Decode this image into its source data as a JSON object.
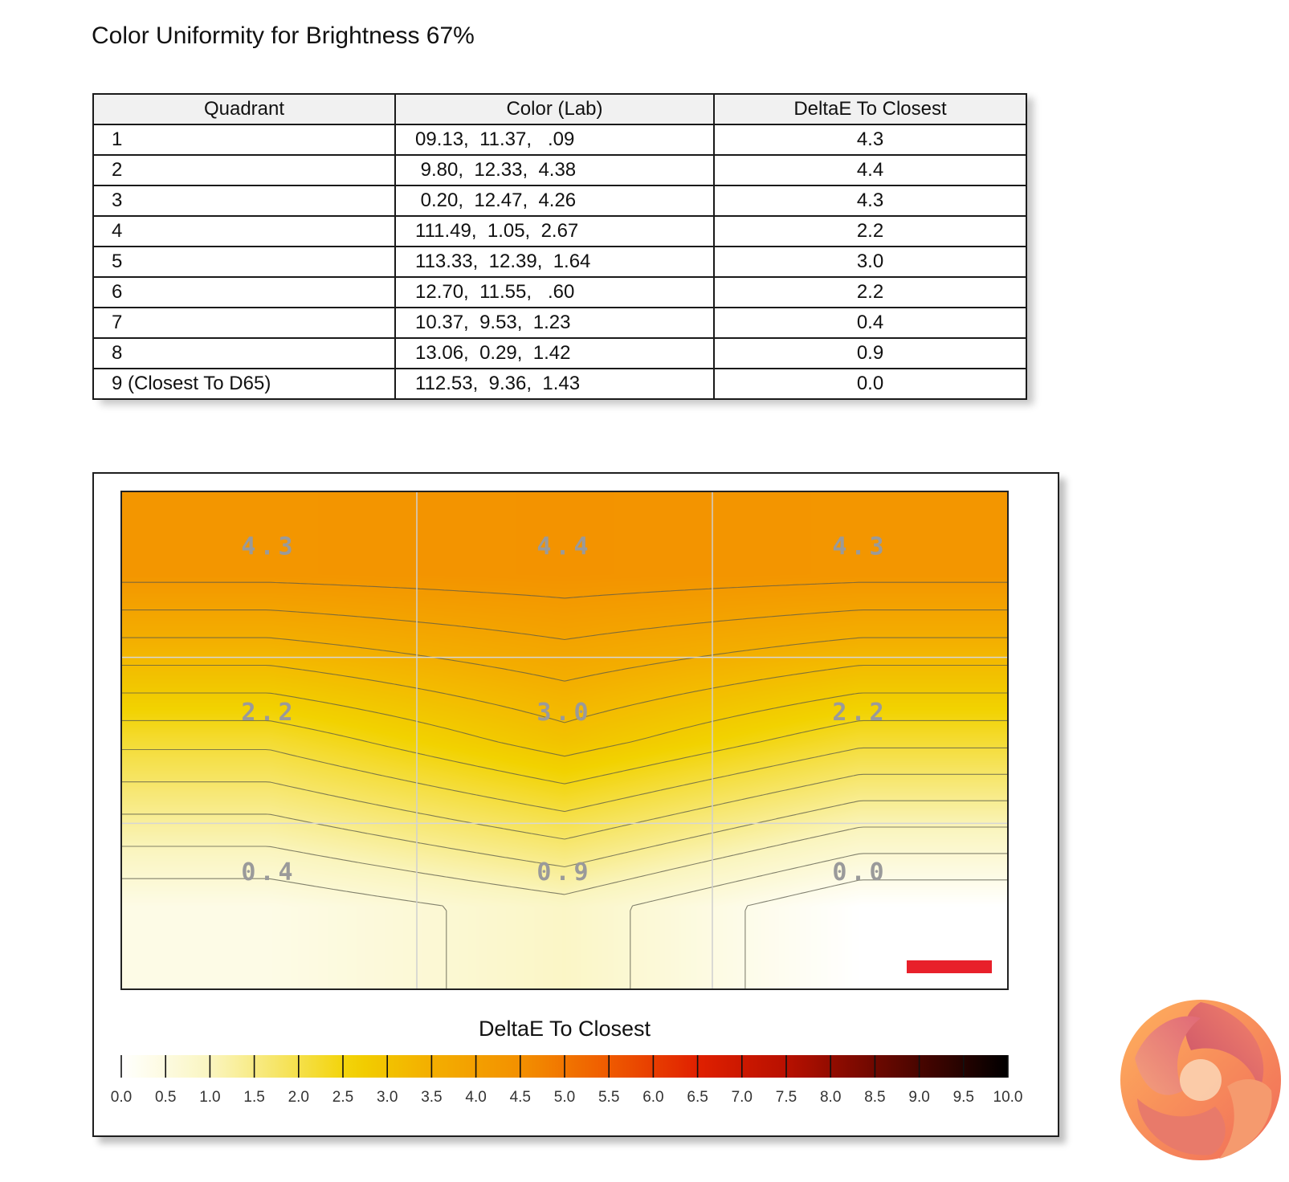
{
  "page_title": "Color Uniformity for Brightness 67%",
  "table": {
    "headers": [
      "Quadrant",
      "Color (Lab)",
      "DeltaE To Closest"
    ],
    "rows": [
      {
        "quadrant": "1",
        "lab": "09.13,  11.37,   .09",
        "delta_e": "4.3"
      },
      {
        "quadrant": "2",
        "lab": " 9.80,  12.33,  4.38",
        "delta_e": "4.4"
      },
      {
        "quadrant": "3",
        "lab": " 0.20,  12.47,  4.26",
        "delta_e": "4.3"
      },
      {
        "quadrant": "4",
        "lab": "111.49,  1.05,  2.67",
        "delta_e": "2.2"
      },
      {
        "quadrant": "5",
        "lab": "113.33,  12.39,  1.64",
        "delta_e": "3.0"
      },
      {
        "quadrant": "6",
        "lab": "12.70,  11.55,   .60",
        "delta_e": "2.2"
      },
      {
        "quadrant": "7",
        "lab": "10.37,  9.53,  1.23",
        "delta_e": "0.4"
      },
      {
        "quadrant": "8",
        "lab": "13.06,  0.29,  1.42",
        "delta_e": "0.9"
      },
      {
        "quadrant": "9 (Closest To D65)",
        "lab": "112.53,  9.36,  1.43",
        "delta_e": "0.0"
      }
    ]
  },
  "chart_data": {
    "type": "heatmap",
    "title": "",
    "grid": {
      "rows": 3,
      "cols": 3,
      "values": [
        [
          4.3,
          4.4,
          4.3
        ],
        [
          2.2,
          3.0,
          2.2
        ],
        [
          0.4,
          0.9,
          0.0
        ]
      ],
      "labels": [
        [
          "4.3",
          "4.4",
          "4.3"
        ],
        [
          "2.2",
          "3.0",
          "2.2"
        ],
        [
          "0.4",
          "0.9",
          "0.0"
        ]
      ]
    },
    "contours": true,
    "gridlines": true,
    "legend": {
      "title": "DeltaE To Closest",
      "placement": "bottom",
      "range": [
        0,
        10
      ],
      "ticks": [
        "0.0",
        "0.5",
        "1.0",
        "1.5",
        "2.0",
        "2.5",
        "3.0",
        "3.5",
        "4.0",
        "4.5",
        "5.0",
        "5.5",
        "6.0",
        "6.5",
        "7.0",
        "7.5",
        "8.0",
        "8.5",
        "9.0",
        "9.5",
        "10.0"
      ]
    },
    "colorscale": [
      [
        0.0,
        "#ffffff"
      ],
      [
        1.0,
        "#faf5c0"
      ],
      [
        2.0,
        "#f5e04a"
      ],
      [
        2.6,
        "#f2d200"
      ],
      [
        3.5,
        "#f3ae00"
      ],
      [
        4.5,
        "#f39000"
      ],
      [
        5.5,
        "#ef5a00"
      ],
      [
        6.5,
        "#e02000"
      ],
      [
        7.5,
        "#b81000"
      ],
      [
        8.5,
        "#6e0800"
      ],
      [
        10.0,
        "#000000"
      ]
    ],
    "marker_color": "#e8202a"
  }
}
